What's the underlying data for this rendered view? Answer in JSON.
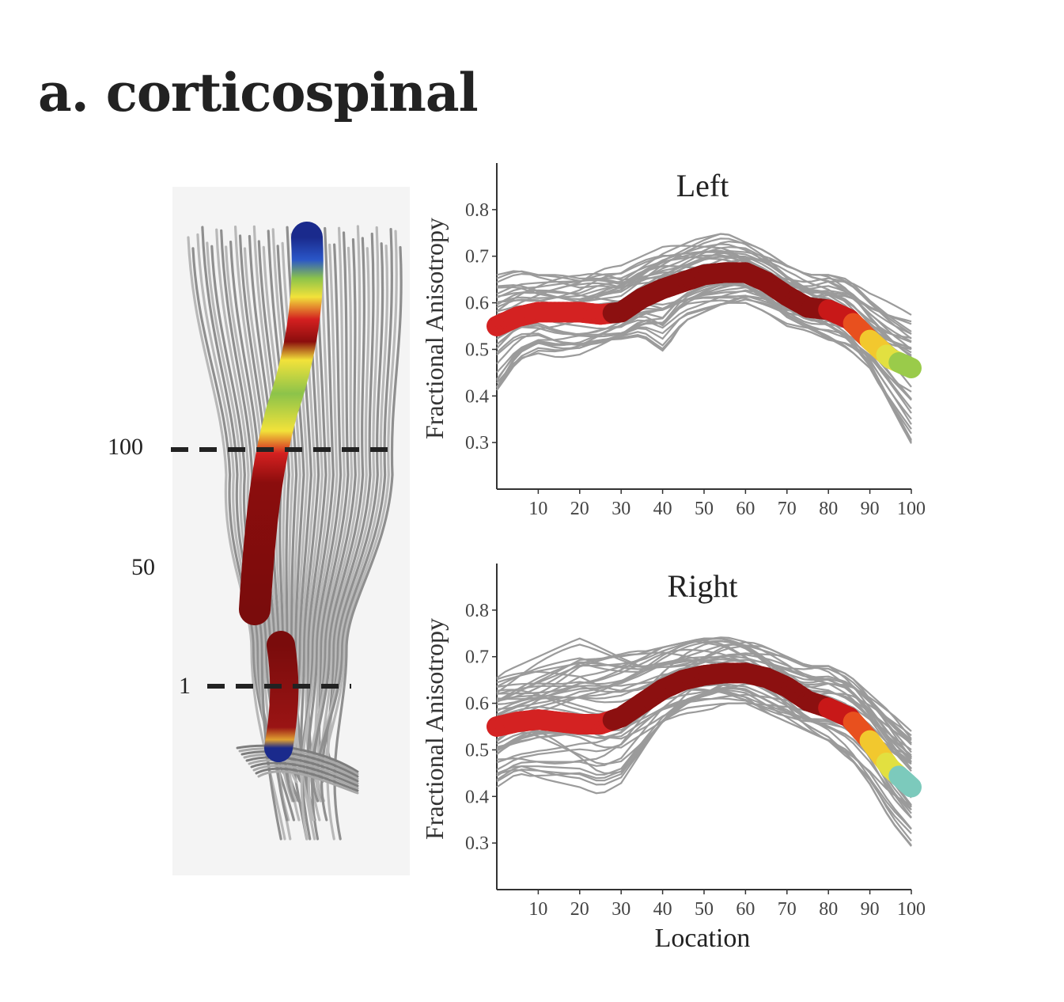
{
  "figure_title": "a. corticospinal",
  "tract_image": {
    "labels": [
      "100",
      "50",
      "1"
    ],
    "colors": {
      "fiber": "#9a9a9a",
      "profile_high": "#8b0d0d",
      "profile_mid": "#d42020",
      "profile_yellow": "#f2e23a",
      "profile_green": "#8cc34a",
      "profile_blue": "#1a2a8c"
    }
  },
  "chart_data": [
    {
      "type": "line",
      "title": "Left",
      "xlabel": "",
      "ylabel": "Fractional Anisotropy",
      "xlim": [
        0,
        100
      ],
      "ylim": [
        0.2,
        0.9
      ],
      "xticks": [
        10,
        20,
        30,
        40,
        50,
        60,
        70,
        80,
        90,
        100
      ],
      "yticks": [
        0.3,
        0.4,
        0.5,
        0.6,
        0.7,
        0.8
      ],
      "mean_profile": {
        "x": [
          0,
          5,
          10,
          15,
          20,
          25,
          30,
          35,
          40,
          45,
          50,
          55,
          60,
          65,
          70,
          75,
          80,
          85,
          90,
          95,
          100
        ],
        "y": [
          0.55,
          0.57,
          0.58,
          0.58,
          0.58,
          0.575,
          0.58,
          0.61,
          0.63,
          0.645,
          0.66,
          0.665,
          0.665,
          0.645,
          0.615,
          0.59,
          0.585,
          0.565,
          0.52,
          0.48,
          0.46
        ]
      },
      "individual_range": {
        "low": [
          0.4,
          0.47,
          0.48,
          0.46,
          0.46,
          0.48,
          0.5,
          0.52,
          0.49,
          0.56,
          0.58,
          0.6,
          0.6,
          0.58,
          0.55,
          0.54,
          0.52,
          0.5,
          0.46,
          0.38,
          0.29
        ],
        "high": [
          0.66,
          0.67,
          0.66,
          0.66,
          0.66,
          0.68,
          0.68,
          0.7,
          0.72,
          0.73,
          0.74,
          0.75,
          0.73,
          0.71,
          0.68,
          0.66,
          0.66,
          0.65,
          0.62,
          0.6,
          0.58
        ]
      }
    },
    {
      "type": "line",
      "title": "Right",
      "xlabel": "Location",
      "ylabel": "Fractional Anisotropy",
      "xlim": [
        0,
        100
      ],
      "ylim": [
        0.2,
        0.9
      ],
      "xticks": [
        10,
        20,
        30,
        40,
        50,
        60,
        70,
        80,
        90,
        100
      ],
      "yticks": [
        0.3,
        0.4,
        0.5,
        0.6,
        0.7,
        0.8
      ],
      "mean_profile": {
        "x": [
          0,
          5,
          10,
          15,
          20,
          25,
          30,
          35,
          40,
          45,
          50,
          55,
          60,
          65,
          70,
          75,
          80,
          85,
          90,
          95,
          100
        ],
        "y": [
          0.55,
          0.56,
          0.565,
          0.56,
          0.555,
          0.555,
          0.57,
          0.6,
          0.63,
          0.65,
          0.66,
          0.665,
          0.665,
          0.655,
          0.635,
          0.605,
          0.59,
          0.57,
          0.52,
          0.46,
          0.42
        ]
      },
      "individual_range": {
        "low": [
          0.42,
          0.45,
          0.44,
          0.43,
          0.42,
          0.39,
          0.4,
          0.46,
          0.52,
          0.56,
          0.58,
          0.6,
          0.6,
          0.58,
          0.56,
          0.54,
          0.52,
          0.48,
          0.42,
          0.34,
          0.28
        ],
        "high": [
          0.66,
          0.68,
          0.7,
          0.72,
          0.74,
          0.73,
          0.72,
          0.71,
          0.72,
          0.73,
          0.74,
          0.75,
          0.74,
          0.72,
          0.7,
          0.68,
          0.68,
          0.66,
          0.62,
          0.58,
          0.54
        ]
      }
    }
  ]
}
